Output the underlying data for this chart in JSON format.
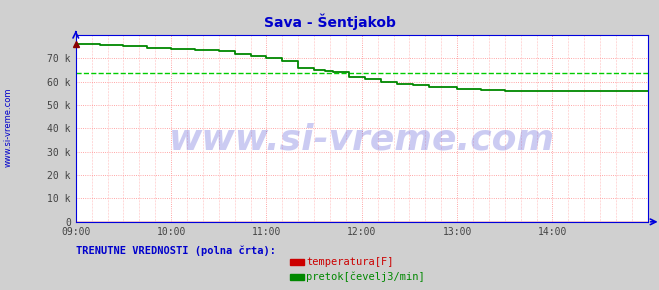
{
  "title": "Sava - Šentjakob",
  "title_color": "#0000cc",
  "title_fontsize": 10,
  "bg_color": "#d0d0d0",
  "plot_bg_color": "#ffffff",
  "axis_color": "#0000dd",
  "grid_color": "#ff8888",
  "grid_style": ":",
  "ylim": [
    0,
    80000
  ],
  "yticks": [
    0,
    10000,
    20000,
    30000,
    40000,
    50000,
    60000,
    70000
  ],
  "ytick_labels": [
    "0",
    "10 k",
    "20 k",
    "30 k",
    "40 k",
    "50 k",
    "60 k",
    "70 k"
  ],
  "xtick_labels": [
    "09:00",
    "10:00",
    "11:00",
    "12:00",
    "13:00",
    "14:00"
  ],
  "xmin": 0,
  "xmax": 360,
  "xticks_pos": [
    0,
    60,
    120,
    180,
    240,
    300
  ],
  "flow_color": "#008800",
  "temp_color": "#cc0000",
  "avg_line_color": "#00cc00",
  "avg_line_value": 63500,
  "avg_line_style": "--",
  "flow_steps_x": [
    0,
    15,
    15,
    30,
    30,
    45,
    45,
    60,
    60,
    75,
    75,
    90,
    90,
    100,
    100,
    110,
    110,
    120,
    120,
    130,
    130,
    140,
    140,
    150,
    150,
    157,
    157,
    162,
    162,
    172,
    172,
    182,
    182,
    192,
    192,
    202,
    202,
    212,
    212,
    222,
    222,
    240,
    240,
    255,
    255,
    270,
    270,
    360
  ],
  "flow_steps_y": [
    76000,
    76000,
    75500,
    75500,
    75000,
    75000,
    74500,
    74500,
    74000,
    74000,
    73500,
    73500,
    73000,
    73000,
    72000,
    72000,
    71000,
    71000,
    70000,
    70000,
    69000,
    69000,
    66000,
    66000,
    65000,
    65000,
    64500,
    64500,
    64000,
    64000,
    62000,
    62000,
    61000,
    61000,
    60000,
    60000,
    59000,
    59000,
    58500,
    58500,
    57500,
    57500,
    57000,
    57000,
    56500,
    56500,
    56000,
    56000
  ],
  "temp_val": 0,
  "legend_items": [
    {
      "label": "temperatura[F]",
      "color": "#cc0000"
    },
    {
      "label": "pretok[čevelj3/min]",
      "color": "#008800"
    }
  ],
  "legend_title": "TRENUTNE VREDNOSTI (polna črta):",
  "legend_title_color": "#0000cc",
  "ylabel_text": "www.si-vreme.com",
  "ylabel_color": "#0000cc",
  "watermark_text": "www.si-vreme.com",
  "watermark_color": "#3333cc",
  "watermark_alpha": 0.25,
  "watermark_fontsize": 26
}
